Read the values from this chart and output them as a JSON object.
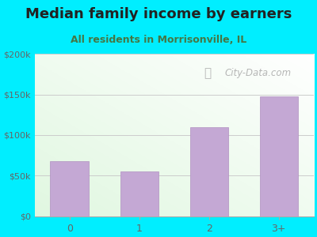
{
  "title": "Median family income by earners",
  "subtitle": "All residents in Morrisonville, IL",
  "categories": [
    "0",
    "1",
    "2",
    "3+"
  ],
  "values": [
    68000,
    55000,
    110000,
    148000
  ],
  "bar_color": "#c4a8d4",
  "bar_edge_color": "#b090c0",
  "ylim": [
    0,
    200000
  ],
  "yticks": [
    0,
    50000,
    100000,
    150000,
    200000
  ],
  "ytick_labels": [
    "$0",
    "$50k",
    "$100k",
    "$150k",
    "$200k"
  ],
  "background_outer": "#00eeff",
  "grid_color": "#cccccc",
  "title_color": "#222222",
  "subtitle_color": "#447744",
  "tick_color": "#666666",
  "watermark_text": "City-Data.com",
  "watermark_color": "#aaaaaa",
  "title_fontsize": 13,
  "subtitle_fontsize": 9
}
